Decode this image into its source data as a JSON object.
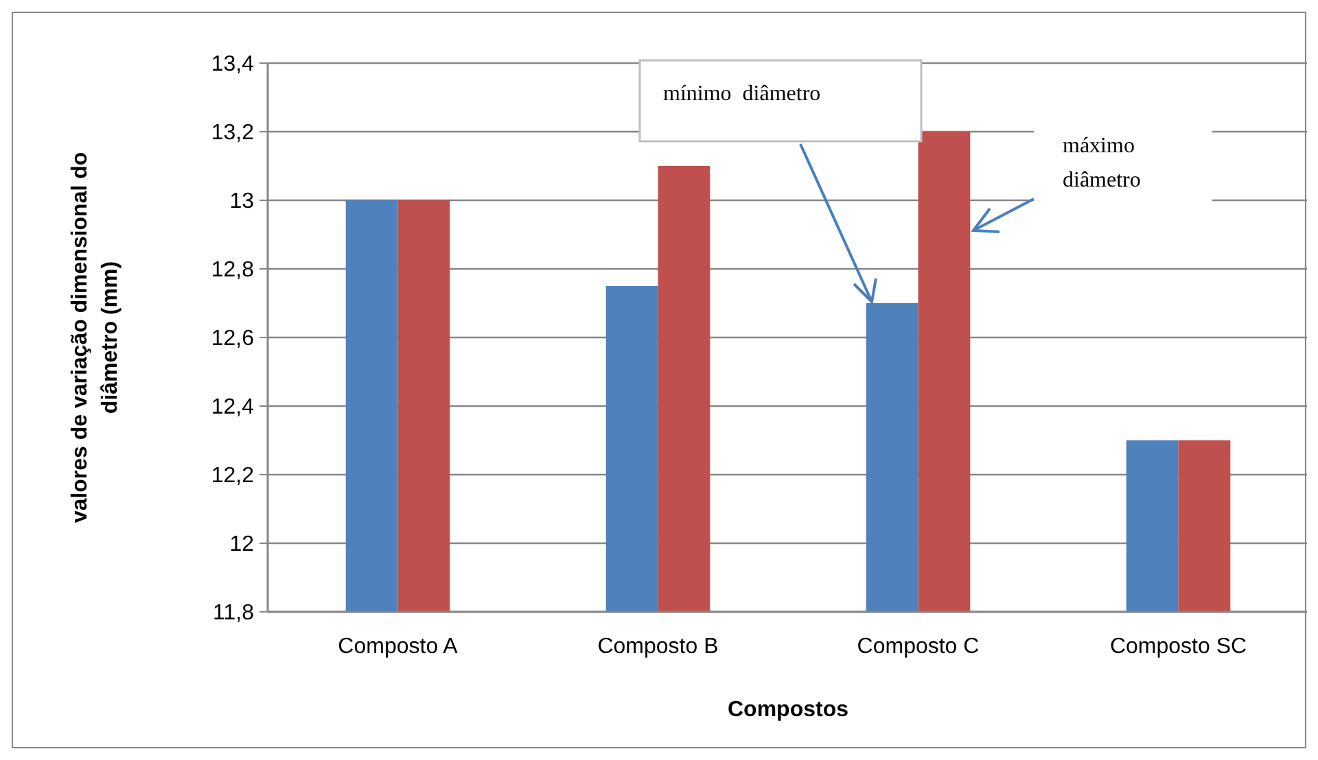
{
  "chart_data": {
    "type": "bar",
    "xlabel": "Compostos",
    "ylabel": "valores de variação dimensional do diâmetro (mm)",
    "categories": [
      "Composto A",
      "Composto B",
      "Composto C",
      "Composto SC"
    ],
    "series": [
      {
        "color": "#4f81bd",
        "values": [
          13,
          12.75,
          12.7,
          12.3
        ]
      },
      {
        "color": "#c0504d",
        "values": [
          13,
          13.1,
          13.2,
          12.3
        ]
      }
    ],
    "ylim": [
      11.8,
      13.4
    ],
    "yticks": [
      {
        "value": 11.8,
        "label": "11,8"
      },
      {
        "value": 12,
        "label": "12"
      },
      {
        "value": 12.2,
        "label": "12,2"
      },
      {
        "value": 12.4,
        "label": "12,4"
      },
      {
        "value": 12.6,
        "label": "12,6"
      },
      {
        "value": 12.8,
        "label": "12,8"
      },
      {
        "value": 13,
        "label": "13"
      },
      {
        "value": 13.2,
        "label": "13,2"
      },
      {
        "value": 13.4,
        "label": "13,4"
      }
    ],
    "grid": "y",
    "annotations": [
      "mínimo  diâmetro",
      "máximo diâmetro"
    ]
  }
}
